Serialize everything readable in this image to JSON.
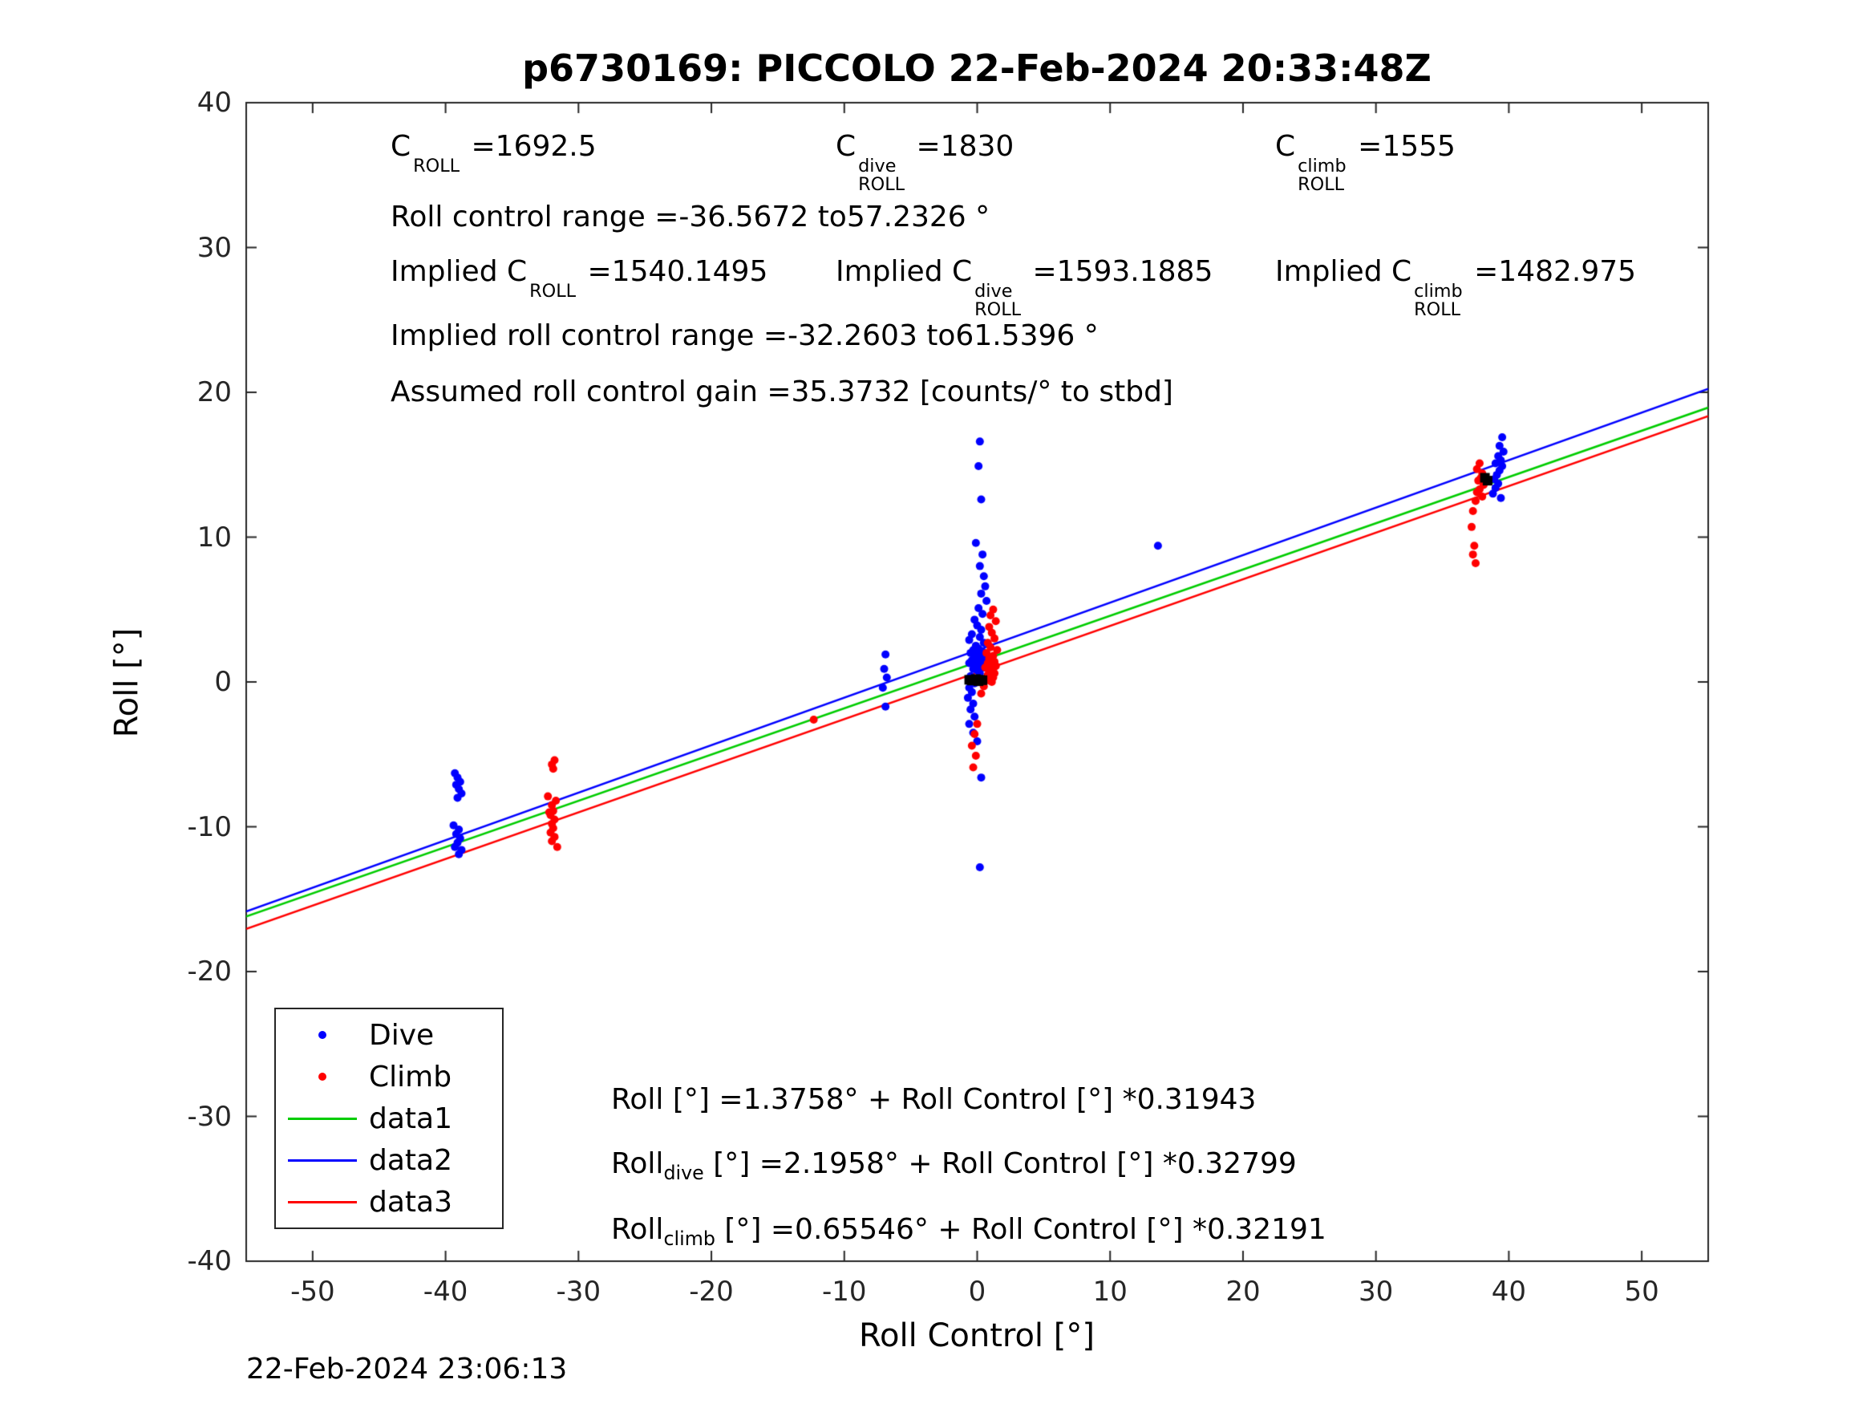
{
  "title": "p6730169: PICCOLO 22-Feb-2024 20:33:48Z",
  "timestamp": "22-Feb-2024 23:06:13",
  "stats": {
    "c_roll": {
      "pre": "C",
      "sup": "",
      "sub": "ROLL",
      "post": " =1692.5"
    },
    "c_roll_dive": {
      "pre": "C",
      "sup": "dive",
      "sub": "ROLL",
      "post": " =1830"
    },
    "c_roll_climb": {
      "pre": "C",
      "sup": "climb",
      "sub": "ROLL",
      "post": " =1555"
    },
    "roll_range": "Roll control range =-36.5672 to57.2326 °",
    "implied_c_roll": {
      "pre": "Implied C",
      "sup": "",
      "sub": "ROLL",
      "post": " =1540.1495"
    },
    "implied_c_roll_dive": {
      "pre": "Implied C",
      "sup": "dive",
      "sub": "ROLL",
      "post": " =1593.1885"
    },
    "implied_c_roll_climb": {
      "pre": "Implied C",
      "sup": "climb",
      "sub": "ROLL",
      "post": " =1482.975"
    },
    "implied_roll_range": "Implied roll control range =-32.2603 to61.5396 °",
    "assumed_gain": "Assumed roll control gain =35.3732 [counts/° to stbd]"
  },
  "equations": [
    {
      "pre": "Roll",
      "sub": "",
      "post": " [°] =1.3758° + Roll Control [°] *0.31943"
    },
    {
      "pre": "Roll",
      "sub": "dive",
      "post": " [°] =2.1958° + Roll Control [°] *0.32799"
    },
    {
      "pre": "Roll",
      "sub": "climb",
      "post": " [°] =0.65546° + Roll Control [°] *0.32191"
    }
  ],
  "legend": {
    "items": [
      {
        "label": "Dive",
        "type": "dot",
        "color": "#0000ff"
      },
      {
        "label": "Climb",
        "type": "dot",
        "color": "#ff0000"
      },
      {
        "label": "data1",
        "type": "line",
        "color": "#00cc00"
      },
      {
        "label": "data2",
        "type": "line",
        "color": "#0000ff"
      },
      {
        "label": "data3",
        "type": "line",
        "color": "#ff0000"
      }
    ]
  },
  "chart_data": {
    "type": "scatter",
    "title": "p6730169: PICCOLO 22-Feb-2024 20:33:48Z",
    "xlabel": "Roll Control [°]",
    "ylabel": "Roll [°]",
    "xlim": [
      -55,
      55
    ],
    "ylim": [
      -40,
      40
    ],
    "xticks": [
      -50,
      -40,
      -30,
      -20,
      -10,
      0,
      10,
      20,
      30,
      40,
      50
    ],
    "yticks": [
      -40,
      -30,
      -20,
      -10,
      0,
      10,
      20,
      30,
      40
    ],
    "grid": false,
    "legend_position": "southwest",
    "axis_color": "#262626",
    "series": [
      {
        "name": "data1",
        "type": "line",
        "color": "#00cc00",
        "intercept": 1.3758,
        "slope": 0.31943
      },
      {
        "name": "data2",
        "type": "line",
        "color": "#0000ff",
        "intercept": 2.1958,
        "slope": 0.32799
      },
      {
        "name": "data3",
        "type": "line",
        "color": "#ff0000",
        "intercept": 0.65546,
        "slope": 0.32191
      },
      {
        "name": "Dive",
        "type": "scatter",
        "color": "#0000ff",
        "marker": "dot",
        "size": 5,
        "points": [
          [
            -39.3,
            -6.3
          ],
          [
            -39.1,
            -6.6
          ],
          [
            -38.9,
            -6.9
          ],
          [
            -39.2,
            -7.1
          ],
          [
            -39.0,
            -7.4
          ],
          [
            -38.8,
            -7.7
          ],
          [
            -39.1,
            -8.0
          ],
          [
            -39.4,
            -9.9
          ],
          [
            -39.0,
            -10.2
          ],
          [
            -39.2,
            -10.5
          ],
          [
            -38.9,
            -10.8
          ],
          [
            -39.1,
            -11.1
          ],
          [
            -39.3,
            -11.4
          ],
          [
            -38.8,
            -11.6
          ],
          [
            -39.0,
            -11.9
          ],
          [
            -6.9,
            1.9
          ],
          [
            -7.0,
            0.9
          ],
          [
            -6.8,
            0.3
          ],
          [
            -7.1,
            -0.4
          ],
          [
            -6.9,
            -1.7
          ],
          [
            0.2,
            16.6
          ],
          [
            0.1,
            14.9
          ],
          [
            0.3,
            12.6
          ],
          [
            -0.1,
            9.6
          ],
          [
            0.4,
            8.8
          ],
          [
            0.2,
            8.0
          ],
          [
            0.5,
            7.3
          ],
          [
            0.6,
            6.6
          ],
          [
            0.3,
            6.1
          ],
          [
            0.7,
            5.6
          ],
          [
            0.1,
            5.1
          ],
          [
            0.4,
            4.7
          ],
          [
            -0.2,
            4.3
          ],
          [
            0.0,
            3.9
          ],
          [
            0.3,
            3.6
          ],
          [
            -0.4,
            3.3
          ],
          [
            0.2,
            3.1
          ],
          [
            -0.6,
            2.9
          ],
          [
            0.5,
            2.7
          ],
          [
            -0.1,
            2.5
          ],
          [
            0.1,
            2.3
          ],
          [
            -0.3,
            2.2
          ],
          [
            0.4,
            2.1
          ],
          [
            -0.5,
            2.0
          ],
          [
            0.0,
            1.9
          ],
          [
            0.2,
            1.8
          ],
          [
            -0.2,
            1.7
          ],
          [
            0.6,
            1.6
          ],
          [
            -0.4,
            1.5
          ],
          [
            0.1,
            1.4
          ],
          [
            -0.6,
            1.3
          ],
          [
            0.3,
            1.2
          ],
          [
            -0.1,
            1.1
          ],
          [
            0.5,
            1.0
          ],
          [
            -0.3,
            0.9
          ],
          [
            0.0,
            0.8
          ],
          [
            0.2,
            0.6
          ],
          [
            -0.5,
            0.4
          ],
          [
            0.1,
            0.2
          ],
          [
            -0.2,
            -0.1
          ],
          [
            -0.6,
            -0.4
          ],
          [
            -0.4,
            -0.7
          ],
          [
            -0.7,
            -1.1
          ],
          [
            -0.3,
            -1.5
          ],
          [
            -0.5,
            -1.9
          ],
          [
            -0.2,
            -2.4
          ],
          [
            -0.6,
            -2.9
          ],
          [
            -0.3,
            -3.5
          ],
          [
            0.0,
            -4.1
          ],
          [
            0.3,
            -6.6
          ],
          [
            0.2,
            -12.8
          ],
          [
            13.6,
            9.4
          ],
          [
            39.5,
            16.9
          ],
          [
            39.3,
            16.3
          ],
          [
            39.6,
            15.9
          ],
          [
            39.2,
            15.6
          ],
          [
            39.4,
            15.3
          ],
          [
            39.0,
            15.1
          ],
          [
            39.5,
            14.9
          ],
          [
            39.3,
            14.6
          ],
          [
            39.1,
            14.3
          ],
          [
            38.9,
            14.0
          ],
          [
            39.2,
            13.7
          ],
          [
            39.0,
            13.4
          ],
          [
            38.8,
            13.0
          ],
          [
            39.4,
            12.7
          ]
        ]
      },
      {
        "name": "Climb",
        "type": "scatter",
        "color": "#ff0000",
        "marker": "dot",
        "size": 5,
        "points": [
          [
            -31.8,
            -5.4
          ],
          [
            -32.0,
            -5.7
          ],
          [
            -31.9,
            -6.0
          ],
          [
            -32.3,
            -7.9
          ],
          [
            -31.7,
            -8.2
          ],
          [
            -32.0,
            -8.5
          ],
          [
            -31.9,
            -8.9
          ],
          [
            -32.1,
            -9.2
          ],
          [
            -31.8,
            -9.5
          ],
          [
            -32.0,
            -9.8
          ],
          [
            -31.9,
            -10.1
          ],
          [
            -32.1,
            -10.4
          ],
          [
            -31.8,
            -10.7
          ],
          [
            -32.0,
            -11.0
          ],
          [
            -31.6,
            -11.4
          ],
          [
            -32.2,
            -9.0
          ],
          [
            -12.3,
            -2.6
          ],
          [
            1.2,
            5.0
          ],
          [
            1.0,
            4.6
          ],
          [
            1.4,
            4.2
          ],
          [
            0.9,
            3.8
          ],
          [
            1.1,
            3.4
          ],
          [
            1.3,
            3.0
          ],
          [
            0.8,
            2.7
          ],
          [
            1.0,
            2.4
          ],
          [
            1.5,
            2.2
          ],
          [
            0.7,
            2.0
          ],
          [
            1.2,
            1.8
          ],
          [
            0.9,
            1.6
          ],
          [
            1.1,
            1.5
          ],
          [
            1.3,
            1.4
          ],
          [
            0.8,
            1.3
          ],
          [
            1.0,
            1.2
          ],
          [
            1.4,
            1.1
          ],
          [
            0.6,
            1.0
          ],
          [
            1.2,
            0.9
          ],
          [
            0.9,
            0.8
          ],
          [
            1.1,
            0.7
          ],
          [
            1.3,
            0.6
          ],
          [
            0.8,
            0.5
          ],
          [
            1.0,
            0.4
          ],
          [
            1.2,
            0.3
          ],
          [
            0.7,
            0.2
          ],
          [
            0.9,
            0.1
          ],
          [
            1.1,
            0.0
          ],
          [
            0.5,
            -0.3
          ],
          [
            0.3,
            -0.8
          ],
          [
            0.0,
            -2.9
          ],
          [
            -0.2,
            -3.6
          ],
          [
            -0.4,
            -4.4
          ],
          [
            -0.1,
            -5.1
          ],
          [
            -0.3,
            -5.9
          ],
          [
            37.8,
            15.1
          ],
          [
            37.6,
            14.7
          ],
          [
            38.0,
            14.4
          ],
          [
            37.9,
            14.1
          ],
          [
            37.7,
            13.9
          ],
          [
            38.1,
            13.6
          ],
          [
            37.8,
            13.3
          ],
          [
            37.6,
            13.1
          ],
          [
            38.0,
            12.8
          ],
          [
            37.5,
            12.5
          ],
          [
            37.3,
            11.8
          ],
          [
            37.2,
            10.7
          ],
          [
            37.4,
            9.4
          ],
          [
            37.3,
            8.8
          ],
          [
            37.5,
            8.2
          ]
        ]
      },
      {
        "name": "overlap-dark",
        "type": "scatter",
        "color": "#000000",
        "marker": "square",
        "size": 6,
        "points": [
          [
            -0.6,
            0.15
          ],
          [
            -0.4,
            0.1
          ],
          [
            -0.2,
            0.12
          ],
          [
            0.0,
            0.1
          ],
          [
            0.2,
            0.15
          ],
          [
            0.4,
            0.12
          ],
          [
            -0.1,
            0.2
          ],
          [
            0.1,
            0.05
          ],
          [
            38.4,
            13.9
          ],
          [
            38.2,
            14.1
          ]
        ]
      }
    ]
  }
}
